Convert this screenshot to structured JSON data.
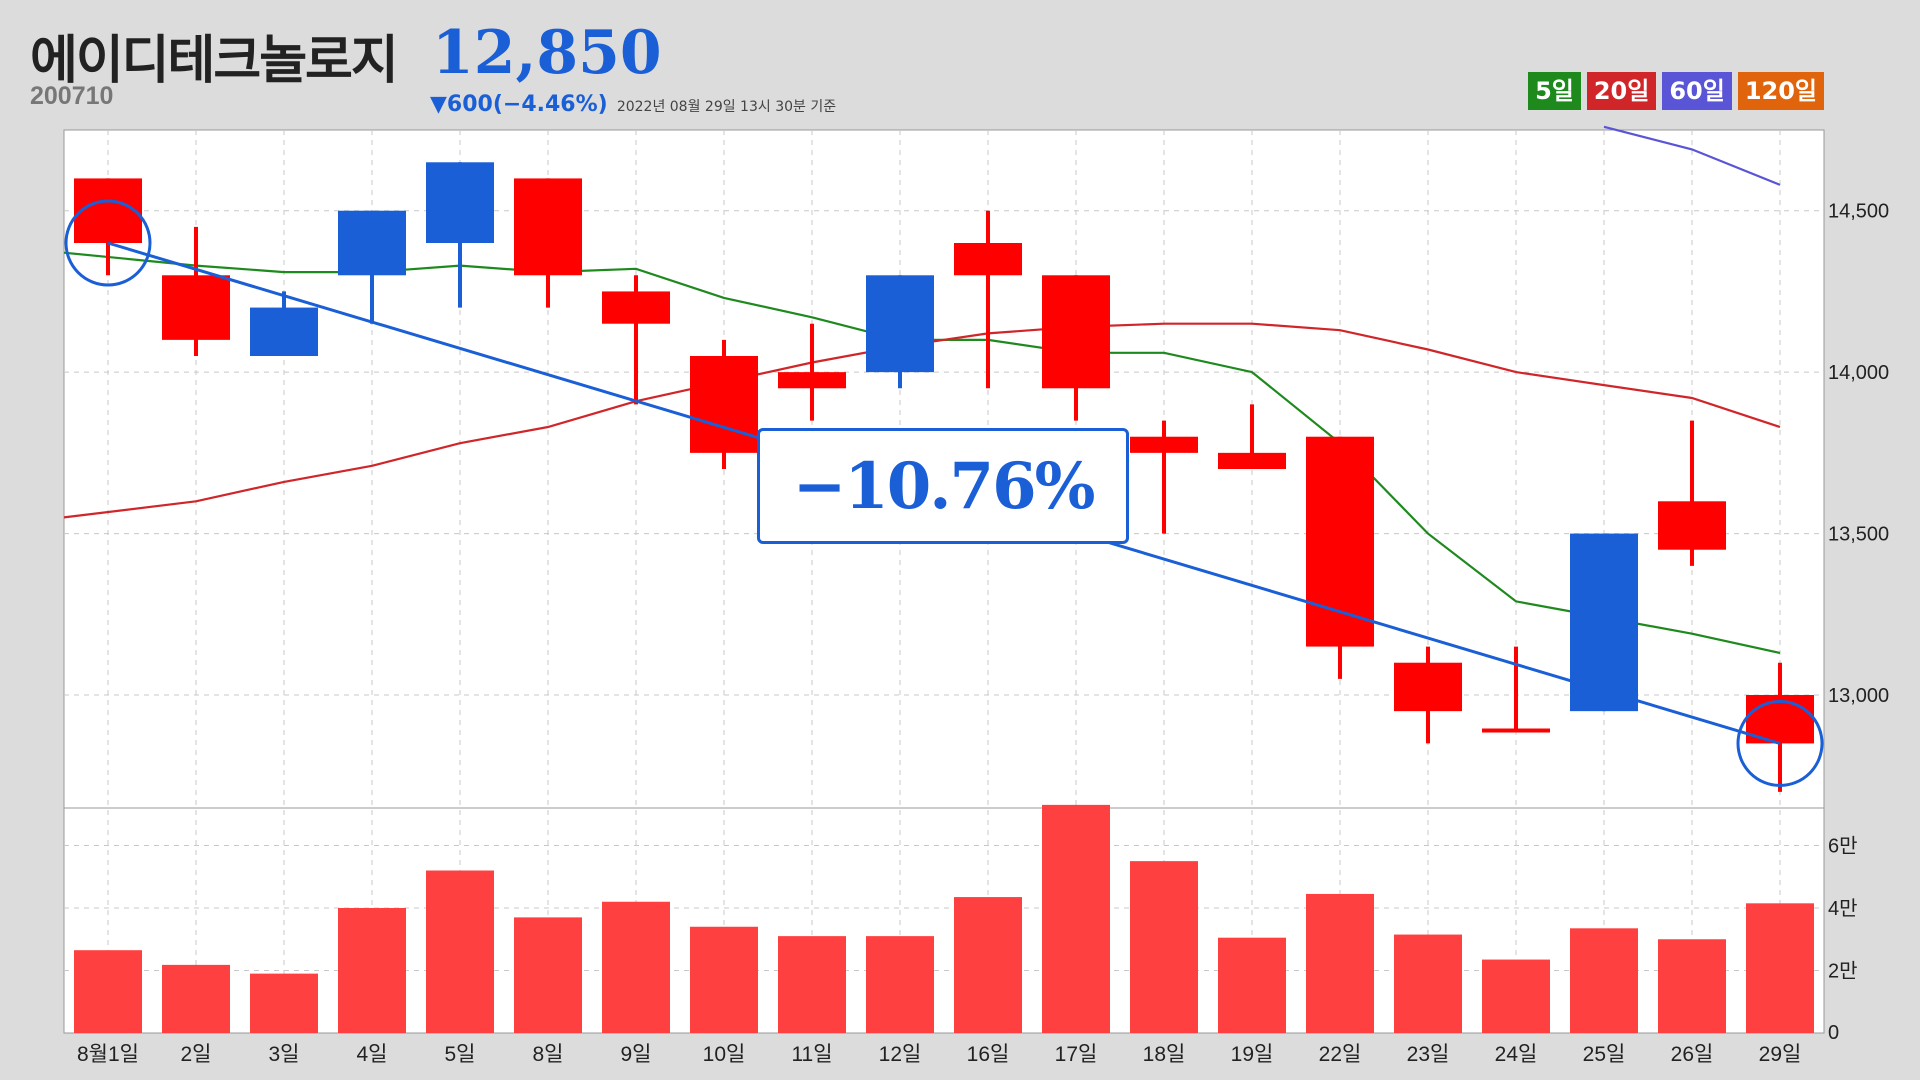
{
  "header": {
    "stock_name": "에이디테크놀로지",
    "stock_code": "200710",
    "price": "12,850",
    "change": "▼600(−4.46%)",
    "timestamp": "2022년 08월 29일 13시 30분 기준"
  },
  "ma_legend": [
    {
      "label": "5일",
      "color": "#1e8a1e"
    },
    {
      "label": "20일",
      "color": "#d0262a"
    },
    {
      "label": "60일",
      "color": "#5a55d6"
    },
    {
      "label": "120일",
      "color": "#e0640c"
    }
  ],
  "annotation": {
    "change_pct": "−10.76%",
    "trend_color": "#1a5fd6"
  },
  "chart_data": {
    "type": "candlestick",
    "categories": [
      "8월1일",
      "2일",
      "3일",
      "4일",
      "5일",
      "8일",
      "9일",
      "10일",
      "11일",
      "12일",
      "16일",
      "17일",
      "18일",
      "19일",
      "22일",
      "23일",
      "24일",
      "25일",
      "26일",
      "29일"
    ],
    "ohlc": [
      [
        14600,
        14600,
        14300,
        14400
      ],
      [
        14300,
        14450,
        14050,
        14100
      ],
      [
        14050,
        14250,
        14050,
        14200
      ],
      [
        14300,
        14500,
        14150,
        14500
      ],
      [
        14400,
        14650,
        14200,
        14650
      ],
      [
        14600,
        14600,
        14200,
        14300
      ],
      [
        14250,
        14300,
        13900,
        14150
      ],
      [
        14050,
        14100,
        13700,
        13750
      ],
      [
        14000,
        14150,
        13850,
        13950
      ],
      [
        14000,
        14300,
        13950,
        14300
      ],
      [
        14400,
        14500,
        13950,
        14300
      ],
      [
        14300,
        14300,
        13850,
        13950
      ],
      [
        13800,
        13850,
        13500,
        13750
      ],
      [
        13750,
        13900,
        13700,
        13700
      ],
      [
        13800,
        13800,
        13050,
        13150
      ],
      [
        13100,
        13150,
        12850,
        12950
      ],
      [
        12890,
        13150,
        12890,
        12890
      ],
      [
        12950,
        13500,
        12950,
        13500
      ],
      [
        13600,
        13850,
        13400,
        13450
      ],
      [
        13000,
        13100,
        12700,
        12850
      ]
    ],
    "up_color": "#1a5fd6",
    "down_color": "#ff0000",
    "moving_averages": [
      {
        "name": "5일",
        "color": "#1e8a1e",
        "values": [
          14370,
          14330,
          14310,
          14310,
          14330,
          14310,
          14320,
          14230,
          14170,
          14100,
          14100,
          14060,
          14060,
          14000,
          13780,
          13500,
          13290,
          13240,
          13190,
          13130
        ]
      },
      {
        "name": "20일",
        "color": "#d0262a",
        "values": [
          13550,
          13600,
          13660,
          13710,
          13780,
          13830,
          13910,
          13970,
          14030,
          14080,
          14120,
          14140,
          14150,
          14150,
          14130,
          14070,
          14000,
          13960,
          13920,
          13830
        ]
      },
      {
        "name": "60일",
        "color": "#5a55d6",
        "values": [
          null,
          null,
          null,
          null,
          null,
          null,
          null,
          null,
          null,
          null,
          null,
          null,
          null,
          null,
          null,
          null,
          null,
          14760,
          14690,
          14580
        ]
      }
    ],
    "y_ticks": [
      "14,500",
      "14,000",
      "13,500",
      "13,000"
    ],
    "y_tick_values": [
      14500,
      14000,
      13500,
      13000
    ],
    "ylim": [
      12650,
      14750
    ],
    "volume": {
      "values": [
        26500,
        21800,
        19000,
        40000,
        52000,
        37000,
        42000,
        34000,
        31000,
        31000,
        43500,
        73000,
        55000,
        30500,
        44500,
        31500,
        23500,
        33500,
        30000,
        41500
      ],
      "color": "#ff4040",
      "y_ticks": [
        "6만",
        "4만",
        "2만",
        "0"
      ],
      "y_tick_values": [
        60000,
        40000,
        20000,
        0
      ],
      "ylim": [
        0,
        72000
      ]
    }
  }
}
